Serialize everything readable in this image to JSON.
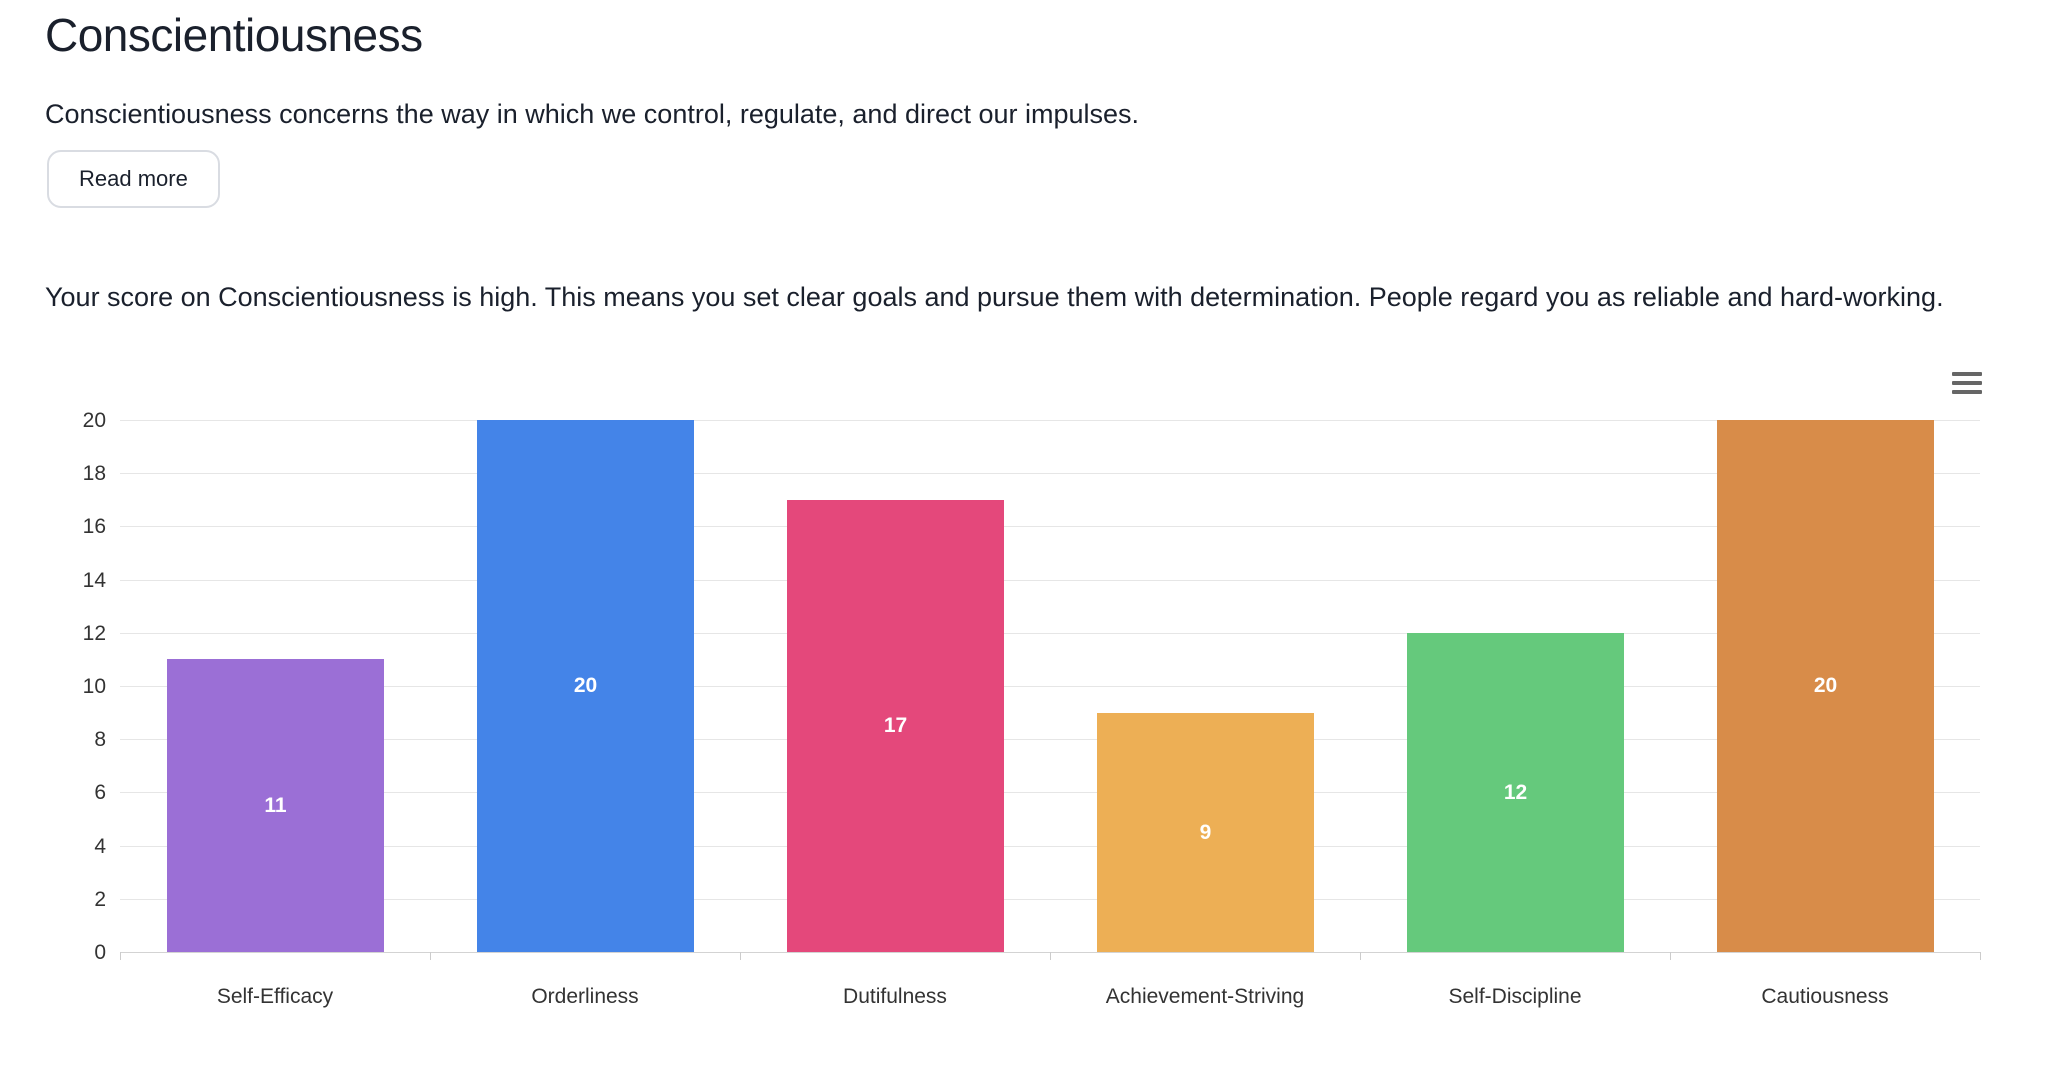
{
  "header": {
    "title": "Conscientiousness",
    "description": "Conscientiousness concerns the way in which we control, regulate, and direct our impulses.",
    "read_more_label": "Read more"
  },
  "result": {
    "summary": "Your score on Conscientiousness is high. This means you set clear goals and pursue them with determination. People regard you as reliable and hard-working."
  },
  "chart": {
    "menu_icon": "hamburger-menu-icon",
    "menu_icon_color": "#666666",
    "grid_color": "#e6e6e6",
    "axis_line_color": "#d3d3d3",
    "tick_color": "#cccccc",
    "axis_label_color": "#333333",
    "value_label_color": "#ffffff"
  },
  "chart_data": {
    "type": "bar",
    "title": "",
    "xlabel": "",
    "ylabel": "",
    "categories": [
      "Self-Efficacy",
      "Orderliness",
      "Dutifulness",
      "Achievement-Striving",
      "Self-Discipline",
      "Cautiousness"
    ],
    "values": [
      11,
      20,
      17,
      9,
      12,
      20
    ],
    "bar_colors": [
      "#9b6fd6",
      "#4484e8",
      "#e4487b",
      "#edaf55",
      "#65c97c",
      "#d88c49"
    ],
    "ylim": [
      0,
      20
    ],
    "ytick_step": 2,
    "grid": true,
    "legend": false,
    "value_labels_inside": true
  }
}
